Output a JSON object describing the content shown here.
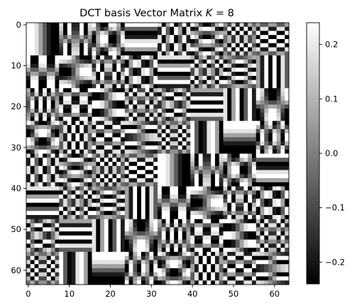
{
  "chart_data": {
    "type": "heatmap",
    "title_prefix": "DCT basis Vector Matrix ",
    "title_math_var": "K",
    "title_math_rest": " = 8",
    "K": 8,
    "shape": [
      64,
      64
    ],
    "colormap": "gray",
    "xlim": [
      -0.5,
      63.5
    ],
    "ylim": [
      63.5,
      -0.5
    ],
    "xticks": [
      0,
      10,
      20,
      30,
      40,
      50,
      60
    ],
    "yticks": [
      0,
      10,
      20,
      30,
      40,
      50,
      60
    ],
    "xtick_labels": [
      "0",
      "10",
      "20",
      "30",
      "40",
      "50",
      "60"
    ],
    "ytick_labels": [
      "0",
      "10",
      "20",
      "30",
      "40",
      "50",
      "60"
    ],
    "colorbar": {
      "vmin": -0.24,
      "vmax": 0.24,
      "ticks": [
        0.2,
        0.1,
        0.0,
        -0.1,
        -0.2
      ],
      "tick_labels": [
        "0.2",
        "0.1",
        "0.0",
        "−0.1",
        "−0.2"
      ]
    },
    "grid": false,
    "legend": "none",
    "values_description_note": ""
  }
}
